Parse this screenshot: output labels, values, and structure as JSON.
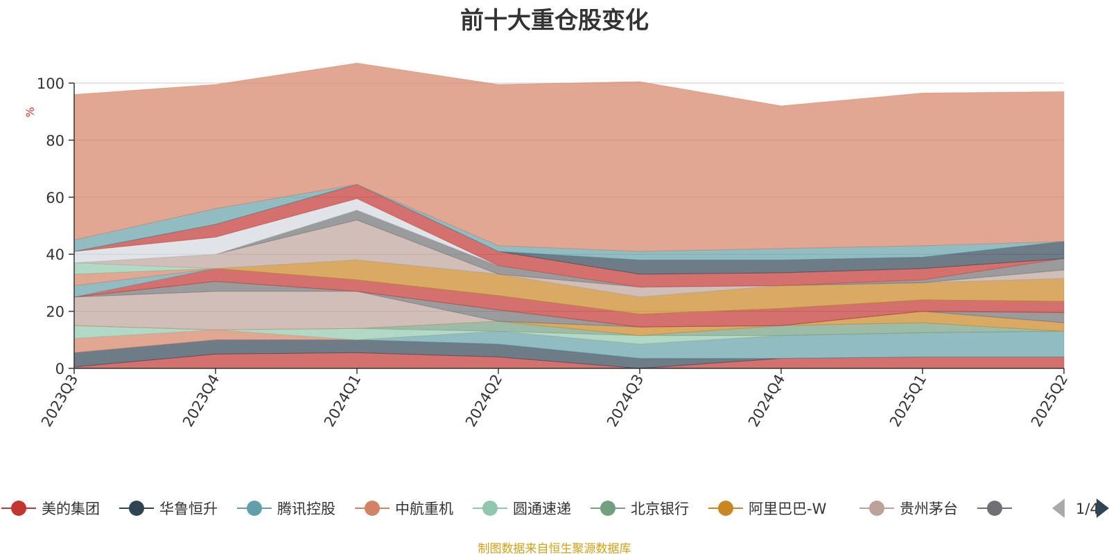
{
  "title": "前十大重仓股变化",
  "source_note": "制图数据来自恒生聚源数据库",
  "legend_page": "1/4",
  "chart_data": {
    "type": "area",
    "stacked": true,
    "title": "前十大重仓股变化",
    "ylabel": "%",
    "ylim": [
      0,
      100
    ],
    "yticks": [
      0,
      20,
      40,
      60,
      80,
      100
    ],
    "grid": true,
    "legend_position": "bottom",
    "categories": [
      "2023Q3",
      "2023Q4",
      "2024Q1",
      "2024Q2",
      "2024Q3",
      "2024Q4",
      "2025Q1",
      "2025Q2"
    ],
    "series": [
      {
        "name": "美的集团",
        "color": "#c23531",
        "values": [
          0.5,
          5,
          5.5,
          4,
          0,
          3.5,
          4,
          4
        ]
      },
      {
        "name": "华鲁恒升",
        "color": "#2f4554",
        "values": [
          5,
          5,
          4.5,
          4.5,
          3.5,
          0,
          0,
          0
        ]
      },
      {
        "name": "腾讯控股",
        "color": "#61a0a8",
        "values": [
          0,
          0,
          0,
          4.5,
          5,
          8,
          8.5,
          9
        ]
      },
      {
        "name": "中航重机",
        "color": "#d48265",
        "values": [
          5,
          3.5,
          0,
          0,
          0,
          0,
          0,
          0
        ]
      },
      {
        "name": "圆通速递",
        "color": "#91c7ae",
        "values": [
          4.5,
          0,
          4,
          0,
          3,
          0,
          0,
          0
        ]
      },
      {
        "name": "北京银行",
        "color": "#749f83",
        "values": [
          0,
          0,
          0,
          3.5,
          0,
          3.5,
          3.5,
          0
        ]
      },
      {
        "name": "阿里巴巴-W",
        "color": "#ca8622",
        "values": [
          0,
          0,
          0,
          0,
          3,
          0,
          4,
          3
        ]
      },
      {
        "name": "贵州茅台",
        "color": "#bda29a",
        "values": [
          10,
          13.5,
          13,
          0,
          0,
          0,
          0,
          0
        ]
      },
      {
        "name": "",
        "color": "#6e7074",
        "values": [
          0,
          3.5,
          0,
          4,
          0,
          0,
          0,
          3.5
        ]
      },
      {
        "name": "",
        "color": "#c23531",
        "values": [
          0,
          4.5,
          4,
          5,
          4.5,
          6,
          4,
          4
        ]
      },
      {
        "name": "",
        "color": "#61a0a8",
        "values": [
          4,
          0,
          0,
          0,
          0,
          0,
          0,
          0
        ]
      },
      {
        "name": "",
        "color": "#d48265",
        "values": [
          4,
          0,
          0,
          0,
          0,
          0,
          0,
          0
        ]
      },
      {
        "name": "",
        "color": "#ca8622",
        "values": [
          0,
          0,
          7,
          7.5,
          6,
          8,
          6,
          8
        ]
      },
      {
        "name": "",
        "color": "#91c7ae",
        "values": [
          4,
          0,
          0,
          0,
          0,
          0,
          0,
          0
        ]
      },
      {
        "name": "",
        "color": "#bda29a",
        "values": [
          0,
          5,
          14,
          0,
          3.5,
          0,
          0,
          3
        ]
      },
      {
        "name": "",
        "color": "#6e7074",
        "values": [
          0,
          0,
          3.5,
          3,
          0,
          0,
          1,
          4
        ]
      },
      {
        "name": "",
        "color": "#d3d9e0",
        "values": [
          4,
          6,
          4,
          0,
          0,
          0,
          0,
          0
        ]
      },
      {
        "name": "",
        "color": "#c23531",
        "values": [
          0,
          4.5,
          5,
          5,
          4.5,
          4.5,
          4,
          0
        ]
      },
      {
        "name": "",
        "color": "#2f4554",
        "values": [
          0,
          0,
          0,
          0,
          5,
          4.5,
          4,
          6
        ]
      },
      {
        "name": "",
        "color": "#61a0a8",
        "values": [
          4,
          5.5,
          0,
          2,
          3,
          4,
          4,
          0
        ]
      },
      {
        "name": "",
        "color": "#d48265",
        "values": [
          51,
          43.5,
          42.5,
          56.5,
          59.5,
          50,
          53.5,
          52.5
        ]
      }
    ]
  },
  "legend_items": [
    {
      "name": "美的集团",
      "color": "#c23531"
    },
    {
      "name": "华鲁恒升",
      "color": "#2f4554"
    },
    {
      "name": "腾讯控股",
      "color": "#61a0a8"
    },
    {
      "name": "中航重机",
      "color": "#d48265"
    },
    {
      "name": "圆通速递",
      "color": "#91c7ae"
    },
    {
      "name": "北京银行",
      "color": "#749f83"
    },
    {
      "name": "阿里巴巴-W",
      "color": "#ca8622"
    },
    {
      "name": "贵州茅台",
      "color": "#bda29a"
    },
    {
      "name": "",
      "color": "#6e7074"
    }
  ]
}
